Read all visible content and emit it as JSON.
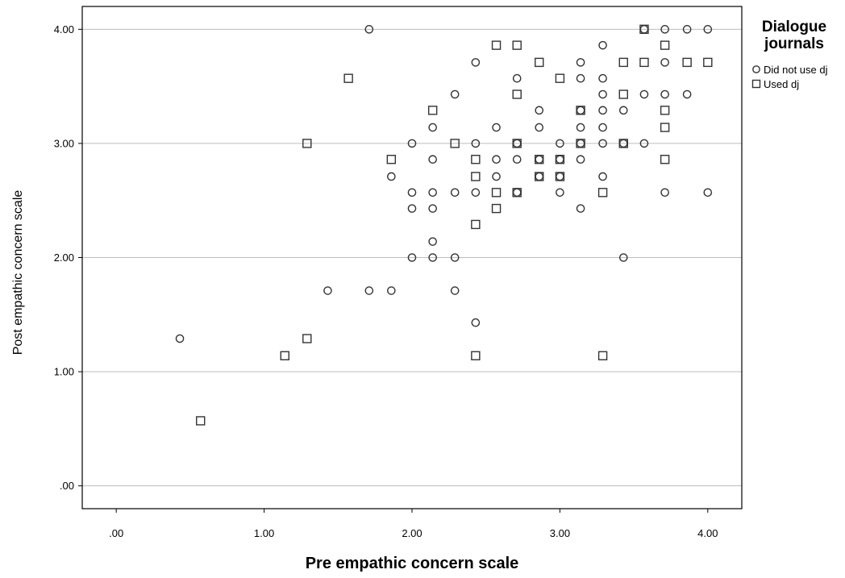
{
  "chart_data": {
    "type": "scatter",
    "title": "",
    "xlabel": "Pre empathic concern scale",
    "ylabel": "Post empathic concern scale",
    "xlim": [
      -0.23,
      4.23
    ],
    "ylim": [
      -0.2,
      4.2
    ],
    "x_ticks": [
      0,
      1,
      2,
      3,
      4
    ],
    "y_ticks": [
      0,
      1,
      2,
      3,
      4
    ],
    "x_tick_labels": [
      ".00",
      "1.00",
      "2.00",
      "3.00",
      "4.00"
    ],
    "y_tick_labels": [
      ".00",
      "1.00",
      "2.00",
      "3.00",
      "4.00"
    ],
    "grid": "horizontal",
    "legend": {
      "title_line1": "Dialogue",
      "title_line2": "journals",
      "placement": "right"
    },
    "series": [
      {
        "name": "Did not use dj",
        "marker": "circle",
        "points": [
          [
            0.43,
            1.29
          ],
          [
            1.43,
            1.71
          ],
          [
            1.71,
            1.71
          ],
          [
            1.71,
            4.0
          ],
          [
            1.86,
            1.71
          ],
          [
            1.86,
            2.71
          ],
          [
            2.0,
            2.0
          ],
          [
            2.0,
            2.43
          ],
          [
            2.0,
            2.57
          ],
          [
            2.0,
            3.0
          ],
          [
            2.14,
            2.0
          ],
          [
            2.14,
            2.14
          ],
          [
            2.14,
            2.43
          ],
          [
            2.14,
            2.57
          ],
          [
            2.14,
            2.86
          ],
          [
            2.14,
            3.14
          ],
          [
            2.29,
            1.71
          ],
          [
            2.29,
            2.0
          ],
          [
            2.29,
            2.57
          ],
          [
            2.29,
            3.43
          ],
          [
            2.43,
            1.43
          ],
          [
            2.43,
            2.57
          ],
          [
            2.43,
            3.0
          ],
          [
            2.43,
            3.71
          ],
          [
            2.57,
            2.71
          ],
          [
            2.57,
            2.86
          ],
          [
            2.57,
            3.14
          ],
          [
            2.71,
            2.57
          ],
          [
            2.71,
            2.86
          ],
          [
            2.71,
            3.0
          ],
          [
            2.71,
            3.57
          ],
          [
            2.86,
            2.71
          ],
          [
            2.86,
            2.86
          ],
          [
            2.86,
            3.14
          ],
          [
            2.86,
            3.29
          ],
          [
            3.0,
            2.57
          ],
          [
            3.0,
            2.71
          ],
          [
            3.0,
            2.86
          ],
          [
            3.0,
            3.0
          ],
          [
            3.14,
            2.43
          ],
          [
            3.14,
            2.86
          ],
          [
            3.14,
            3.0
          ],
          [
            3.14,
            3.14
          ],
          [
            3.14,
            3.29
          ],
          [
            3.14,
            3.57
          ],
          [
            3.14,
            3.71
          ],
          [
            3.29,
            2.71
          ],
          [
            3.29,
            3.0
          ],
          [
            3.29,
            3.14
          ],
          [
            3.29,
            3.29
          ],
          [
            3.29,
            3.43
          ],
          [
            3.29,
            3.57
          ],
          [
            3.29,
            3.86
          ],
          [
            3.43,
            2.0
          ],
          [
            3.43,
            3.0
          ],
          [
            3.43,
            3.29
          ],
          [
            3.57,
            3.0
          ],
          [
            3.57,
            3.43
          ],
          [
            3.57,
            4.0
          ],
          [
            3.71,
            2.57
          ],
          [
            3.71,
            3.43
          ],
          [
            3.71,
            3.71
          ],
          [
            3.71,
            4.0
          ],
          [
            3.86,
            3.43
          ],
          [
            3.86,
            4.0
          ],
          [
            4.0,
            2.57
          ],
          [
            4.0,
            4.0
          ]
        ]
      },
      {
        "name": "Used dj",
        "marker": "square",
        "points": [
          [
            0.57,
            0.57
          ],
          [
            1.14,
            1.14
          ],
          [
            1.29,
            1.29
          ],
          [
            1.29,
            3.0
          ],
          [
            1.57,
            3.57
          ],
          [
            1.86,
            2.86
          ],
          [
            2.14,
            3.29
          ],
          [
            2.29,
            3.0
          ],
          [
            2.43,
            1.14
          ],
          [
            2.43,
            2.29
          ],
          [
            2.43,
            2.71
          ],
          [
            2.43,
            2.86
          ],
          [
            2.57,
            2.43
          ],
          [
            2.57,
            2.57
          ],
          [
            2.57,
            3.86
          ],
          [
            2.71,
            2.57
          ],
          [
            2.71,
            3.0
          ],
          [
            2.71,
            3.43
          ],
          [
            2.71,
            3.86
          ],
          [
            2.86,
            2.71
          ],
          [
            2.86,
            2.86
          ],
          [
            2.86,
            3.71
          ],
          [
            3.0,
            2.71
          ],
          [
            3.0,
            2.86
          ],
          [
            3.0,
            3.57
          ],
          [
            3.14,
            3.0
          ],
          [
            3.14,
            3.29
          ],
          [
            3.29,
            1.14
          ],
          [
            3.29,
            2.57
          ],
          [
            3.43,
            3.0
          ],
          [
            3.43,
            3.43
          ],
          [
            3.43,
            3.71
          ],
          [
            3.57,
            3.71
          ],
          [
            3.57,
            4.0
          ],
          [
            3.71,
            2.86
          ],
          [
            3.71,
            3.14
          ],
          [
            3.71,
            3.29
          ],
          [
            3.71,
            3.86
          ],
          [
            3.86,
            3.71
          ],
          [
            4.0,
            3.71
          ]
        ]
      }
    ]
  }
}
